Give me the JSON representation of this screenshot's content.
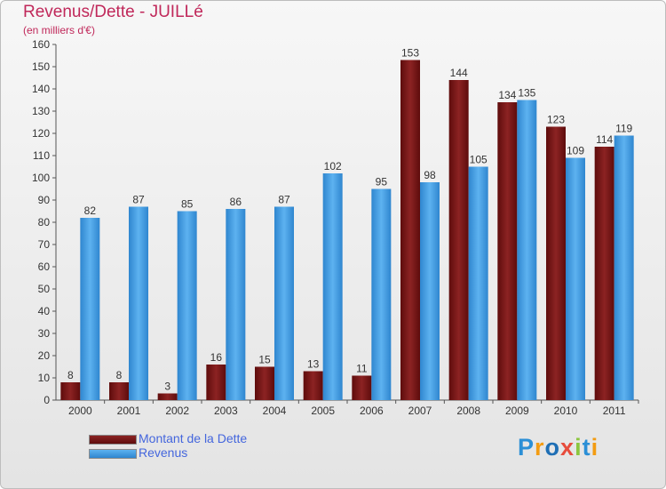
{
  "title": "Revenus/Dette - JUILLé",
  "subtitle": "(en milliers d'€)",
  "brand": [
    "P",
    "r",
    "o",
    "x",
    "i",
    "t",
    "i"
  ],
  "colors": {
    "dette": "#7a1414",
    "revenus": "#4aa3ea",
    "title": "#c0285a",
    "legend_text": "#4466dd"
  },
  "chart_data": {
    "type": "bar",
    "categories": [
      "2000",
      "2001",
      "2002",
      "2003",
      "2004",
      "2005",
      "2006",
      "2007",
      "2008",
      "2009",
      "2010",
      "2011"
    ],
    "series": [
      {
        "name": "Montant de la Dette",
        "values": [
          8,
          8,
          3,
          16,
          15,
          13,
          11,
          153,
          144,
          134,
          123,
          114
        ]
      },
      {
        "name": "Revenus",
        "values": [
          82,
          87,
          85,
          86,
          87,
          102,
          95,
          98,
          105,
          135,
          109,
          119
        ]
      }
    ],
    "ylim": [
      0,
      160
    ],
    "yticks": [
      0,
      10,
      20,
      30,
      40,
      50,
      60,
      70,
      80,
      90,
      100,
      110,
      120,
      130,
      140,
      150,
      160
    ],
    "grid": false,
    "legend_position": "bottom-left"
  }
}
